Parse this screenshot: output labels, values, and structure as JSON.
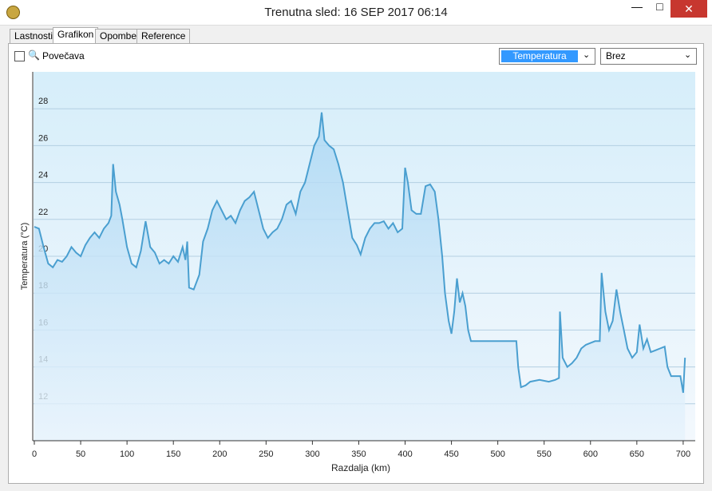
{
  "window": {
    "title": "Trenutna sled: 16 SEP 2017 06:14"
  },
  "tabs": [
    "Lastnosti",
    "Grafikon",
    "Opombe",
    "Reference"
  ],
  "toolbar": {
    "zoom_label": "Povečava",
    "dropdown_1": "Temperatura",
    "dropdown_2": "Brez"
  },
  "chart_data": {
    "type": "line",
    "xlabel": "Razdalja  (km)",
    "ylabel": "Temperatura (°C)",
    "color": "#4a9fd0",
    "x": [
      0,
      5,
      10,
      15,
      20,
      25,
      30,
      35,
      40,
      45,
      50,
      55,
      60,
      65,
      70,
      75,
      80,
      83,
      85,
      88,
      92,
      95,
      100,
      105,
      110,
      115,
      120,
      125,
      130,
      135,
      140,
      145,
      150,
      155,
      160,
      163,
      165,
      167,
      172,
      178,
      182,
      187,
      192,
      197,
      202,
      207,
      212,
      217,
      222,
      227,
      232,
      237,
      242,
      247,
      252,
      257,
      262,
      267,
      272,
      277,
      282,
      287,
      292,
      297,
      302,
      307,
      310,
      313,
      318,
      323,
      328,
      333,
      338,
      343,
      348,
      352,
      357,
      362,
      367,
      372,
      377,
      382,
      387,
      392,
      397,
      400,
      403,
      407,
      412,
      417,
      422,
      427,
      432,
      436,
      440,
      443,
      447,
      450,
      453,
      456,
      459,
      462,
      465,
      468,
      471,
      480,
      500,
      520,
      522,
      525,
      530,
      535,
      545,
      555,
      562,
      566,
      567,
      570,
      575,
      580,
      585,
      590,
      595,
      600,
      605,
      610,
      612,
      616,
      620,
      624,
      628,
      632,
      636,
      640,
      645,
      650,
      653,
      657,
      661,
      665,
      670,
      675,
      680,
      683,
      687,
      692,
      697,
      700,
      702
    ],
    "values": [
      21.6,
      21.5,
      20.5,
      19.6,
      19.4,
      19.8,
      19.7,
      20.0,
      20.5,
      20.2,
      20.0,
      20.6,
      21.0,
      21.3,
      21.0,
      21.5,
      21.8,
      22.2,
      25.0,
      23.5,
      22.8,
      22.0,
      20.5,
      19.6,
      19.4,
      20.3,
      21.9,
      20.5,
      20.2,
      19.6,
      19.8,
      19.6,
      20.0,
      19.7,
      20.5,
      19.8,
      20.8,
      18.3,
      18.2,
      19.0,
      20.8,
      21.5,
      22.5,
      23.0,
      22.5,
      22.0,
      22.2,
      21.8,
      22.5,
      23.0,
      23.2,
      23.5,
      22.5,
      21.5,
      21.0,
      21.3,
      21.5,
      22.0,
      22.8,
      23.0,
      22.3,
      23.5,
      24.0,
      25.0,
      26.0,
      26.5,
      27.8,
      26.3,
      26.0,
      25.8,
      25.0,
      24.0,
      22.5,
      21.0,
      20.6,
      20.1,
      21.0,
      21.5,
      21.8,
      21.8,
      21.9,
      21.5,
      21.8,
      21.3,
      21.5,
      24.8,
      24.0,
      22.5,
      22.3,
      22.3,
      23.8,
      23.9,
      23.5,
      22.0,
      20.0,
      18.0,
      16.5,
      15.8,
      17.0,
      18.8,
      17.5,
      18.0,
      17.3,
      16.0,
      15.4,
      15.4,
      15.4,
      15.4,
      14.0,
      12.9,
      13.0,
      13.2,
      13.3,
      13.2,
      13.3,
      13.4,
      17.0,
      14.5,
      14.0,
      14.2,
      14.5,
      15.0,
      15.2,
      15.3,
      15.4,
      15.4,
      19.1,
      17.0,
      16.0,
      16.5,
      18.2,
      17.0,
      16.0,
      15.0,
      14.5,
      14.8,
      16.3,
      15.0,
      15.5,
      14.8,
      14.9,
      15.0,
      15.1,
      14.0,
      13.5,
      13.5,
      13.5,
      12.6,
      14.5
    ],
    "xlim": [
      0,
      713
    ],
    "xticks": [
      0,
      50,
      100,
      150,
      200,
      250,
      300,
      350,
      400,
      450,
      500,
      550,
      600,
      650,
      700
    ],
    "ylim": [
      10,
      30
    ],
    "yticks": [
      12,
      14,
      16,
      18,
      20,
      22,
      24,
      26,
      28
    ],
    "grid": true
  }
}
